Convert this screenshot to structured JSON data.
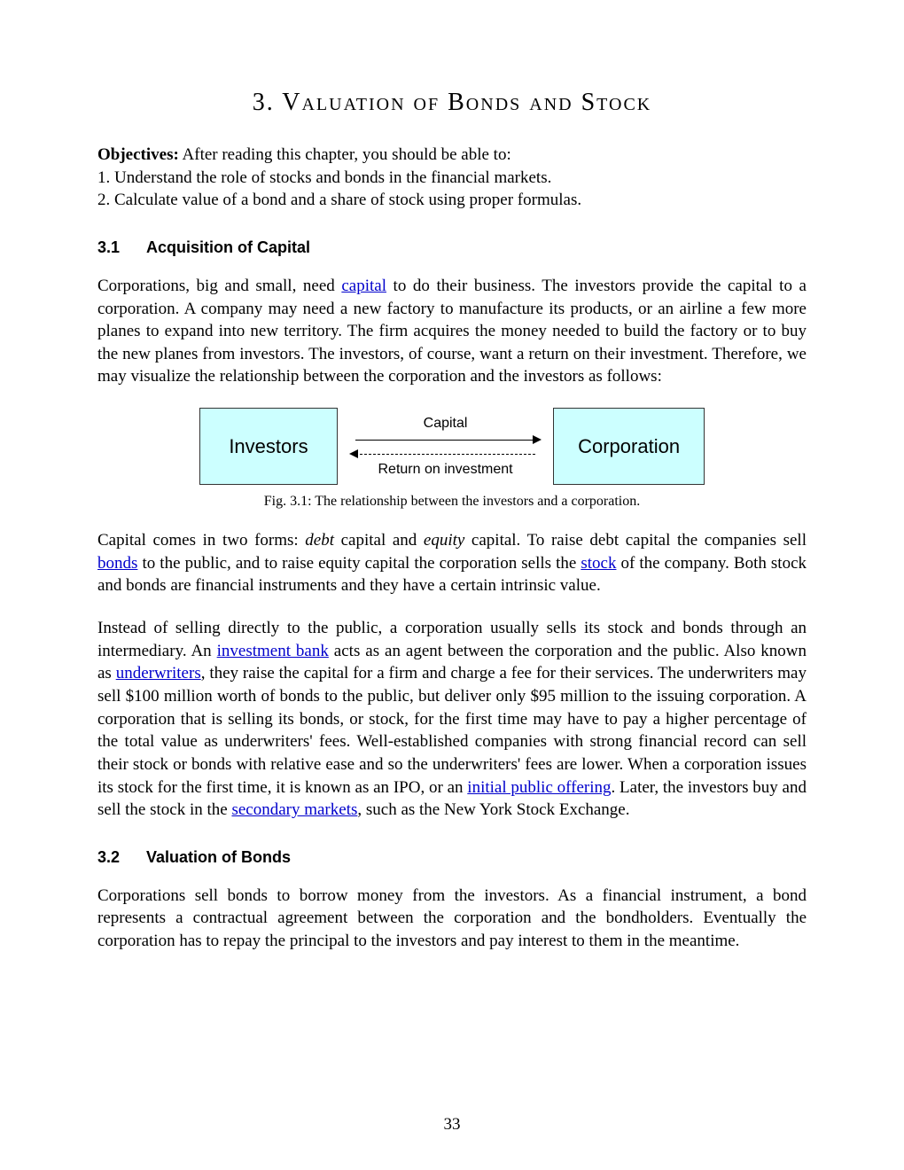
{
  "chapter": {
    "title": "3. Valuation of Bonds and Stock"
  },
  "objectives": {
    "label": "Objectives:",
    "intro": " After reading this chapter, you should be able to:",
    "items": [
      "1. Understand the role of stocks and bonds in the financial markets.",
      "2. Calculate value of a bond and a share of stock using proper formulas."
    ]
  },
  "section1": {
    "number": "3.1",
    "title": "Acquisition of Capital",
    "para1_a": "Corporations, big and small, need ",
    "link_capital": "capital",
    "para1_b": " to do their business. The investors provide the capital to a corporation. A company may need a new factory to manufacture its products, or an airline a few more planes to expand into new territory. The firm acquires the money needed to build the factory or to buy the new planes from investors. The investors, of course, want a return on their investment. Therefore, we may visualize the relationship between the corporation and the investors as follows:"
  },
  "diagram": {
    "box_left": "Investors",
    "box_right": "Corporation",
    "arrow_top_label": "Capital",
    "arrow_bottom_label": "Return on investment",
    "caption": "Fig. 3.1: The relationship between the investors and a corporation.",
    "box_bg_color": "#ccffff",
    "box_border_color": "#333333"
  },
  "section1_para2": {
    "a": "Capital comes in two forms: ",
    "debt": "debt",
    "b": " capital and ",
    "equity": "equity",
    "c": " capital. To raise debt capital the companies sell ",
    "link_bonds": "bonds",
    "d": " to the public, and to raise equity capital the corporation sells the ",
    "link_stock": "stock",
    "e": " of the company. Both stock and bonds are financial instruments and they have a certain intrinsic value."
  },
  "section1_para3": {
    "a": "Instead of selling directly to the public, a corporation usually sells its stock and bonds through an intermediary. An ",
    "link_investment_bank": "investment bank",
    "b": " acts as an agent between the corporation and the public. Also known as ",
    "link_underwriters": "underwriters",
    "c": ", they raise the capital for a firm and charge a fee for their services. The underwriters may sell $100 million worth of bonds to the public, but deliver only $95 million to the issuing corporation. A corporation that is selling its bonds, or stock, for the first time may have to pay a higher percentage of the total value as underwriters' fees. Well-established companies with strong financial record can sell their stock or bonds with relative ease and so the underwriters' fees are lower. When a corporation issues its stock for the first time, it is known as an IPO, or an ",
    "link_ipo": "initial public offering",
    "d": ". Later, the investors buy and sell the stock in the ",
    "link_secondary": "secondary markets",
    "e": ", such as the New York Stock Exchange."
  },
  "section2": {
    "number": "3.2",
    "title": "Valuation of Bonds",
    "para1": "Corporations sell bonds to borrow money from the investors. As a financial instrument, a bond represents a contractual agreement between the corporation and the bondholders. Eventually the corporation has to repay the principal to the investors and pay interest to them in the meantime."
  },
  "page_number": "33",
  "colors": {
    "link_color": "#0000cc",
    "text_color": "#000000",
    "background": "#ffffff"
  }
}
